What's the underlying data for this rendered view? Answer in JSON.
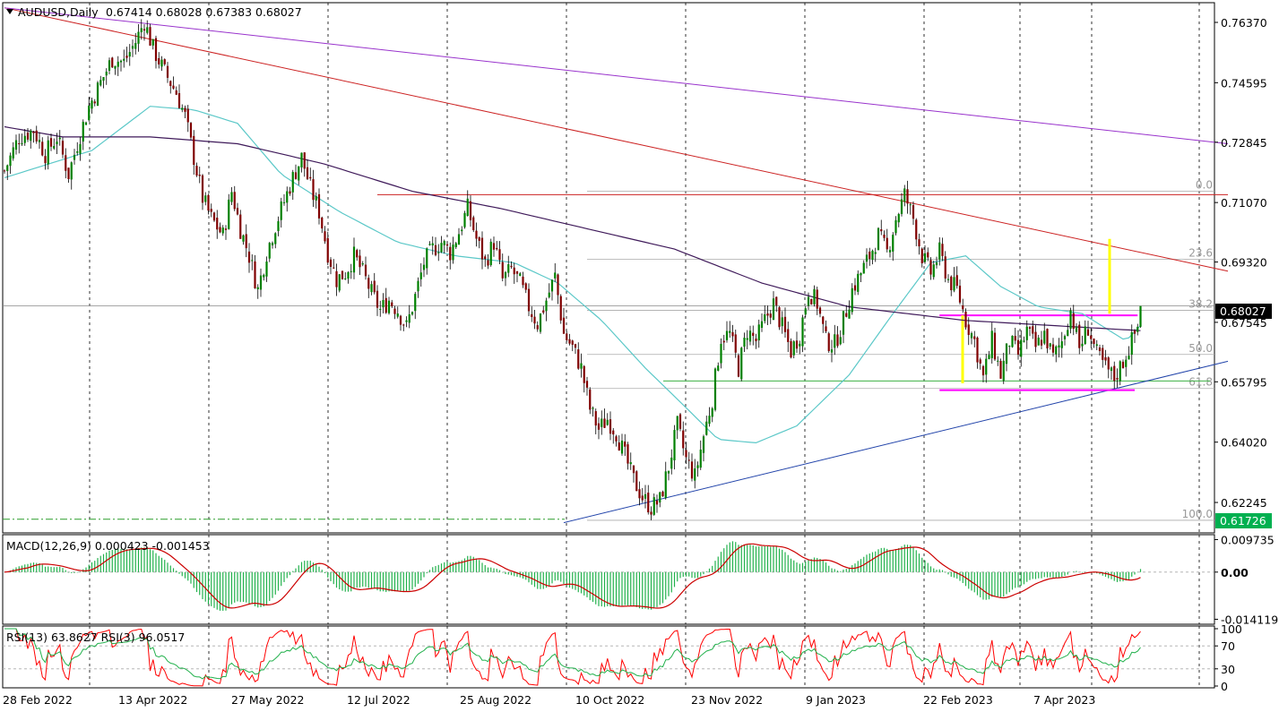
{
  "header": {
    "symbol": "AUDUSD,Daily",
    "ohlc": "0.67414 0.68028 0.67383 0.68027"
  },
  "price_scale": [
    "0.76370",
    "0.74595",
    "0.72845",
    "0.71070",
    "0.69320",
    "0.67545",
    "0.65795",
    "0.64020",
    "0.62245"
  ],
  "price_tags": {
    "current": "0.68027",
    "current_bg": "#000000",
    "low": "0.61726",
    "low_bg": "#00b050"
  },
  "fibonacci": [
    "0.0",
    "23.6",
    "38.2",
    "50.0",
    "61.8",
    "100.0"
  ],
  "macd": {
    "label": "MACD(12,26,9) 0.000423 -0.001453",
    "scale": [
      "0.009735",
      "0.00",
      "-0.014119"
    ],
    "histogram_color": "#22b14c",
    "signal_color": "#cc0000"
  },
  "rsi": {
    "label": "RSI(13) 63.8627  RSI(3) 96.0517",
    "scale": [
      "100",
      "70",
      "30",
      "0"
    ],
    "slow_color": "#22b14c",
    "fast_color": "#ff0000"
  },
  "date_axis": [
    "28 Feb 2022",
    "13 Apr 2022",
    "27 May 2022",
    "12 Jul 2022",
    "25 Aug 2022",
    "10 Oct 2022",
    "23 Nov 2022",
    "9 Jan 2023",
    "22 Feb 2023",
    "7 Apr 2023"
  ],
  "colors": {
    "bull_candle": "#008000",
    "bear_candle": "#800000",
    "ma_fast": "#5bc8c8",
    "ma_slow": "#3f1a5a",
    "trend_red": "#cc2222",
    "trend_purple": "#9933cc",
    "trend_blue": "#2244aa",
    "range_box": "#ff00ff",
    "measure": "#ffff00"
  },
  "chart_data": {
    "type": "candlestick",
    "symbol": "AUDUSD",
    "timeframe": "Daily",
    "last_ohlc": {
      "open": 0.67414,
      "high": 0.68028,
      "low": 0.67383,
      "close": 0.68027
    },
    "ylim": [
      0.6135,
      0.7695
    ],
    "x_tick_labels": [
      "28 Feb 2022",
      "13 Apr 2022",
      "27 May 2022",
      "12 Jul 2022",
      "25 Aug 2022",
      "10 Oct 2022",
      "23 Nov 2022",
      "9 Jan 2023",
      "22 Feb 2023",
      "7 Apr 2023"
    ],
    "close_path": [
      [
        0,
        0.72
      ],
      [
        5,
        0.73
      ],
      [
        10,
        0.732
      ],
      [
        14,
        0.725
      ],
      [
        18,
        0.73
      ],
      [
        22,
        0.719
      ],
      [
        25,
        0.728
      ],
      [
        29,
        0.739
      ],
      [
        33,
        0.746
      ],
      [
        37,
        0.753
      ],
      [
        41,
        0.752
      ],
      [
        45,
        0.758
      ],
      [
        48,
        0.764
      ],
      [
        51,
        0.756
      ],
      [
        55,
        0.749
      ],
      [
        59,
        0.743
      ],
      [
        62,
        0.736
      ],
      [
        65,
        0.724
      ],
      [
        68,
        0.712
      ],
      [
        71,
        0.706
      ],
      [
        75,
        0.701
      ],
      [
        78,
        0.714
      ],
      [
        81,
        0.703
      ],
      [
        84,
        0.695
      ],
      [
        87,
        0.685
      ],
      [
        90,
        0.696
      ],
      [
        93,
        0.704
      ],
      [
        96,
        0.711
      ],
      [
        99,
        0.718
      ],
      [
        102,
        0.724
      ],
      [
        105,
        0.715
      ],
      [
        108,
        0.708
      ],
      [
        111,
        0.696
      ],
      [
        114,
        0.688
      ],
      [
        117,
        0.69
      ],
      [
        120,
        0.695
      ],
      [
        123,
        0.69
      ],
      [
        126,
        0.684
      ],
      [
        129,
        0.679
      ],
      [
        132,
        0.682
      ],
      [
        135,
        0.679
      ],
      [
        138,
        0.674
      ],
      [
        141,
        0.683
      ],
      [
        144,
        0.693
      ],
      [
        147,
        0.697
      ],
      [
        150,
        0.699
      ],
      [
        153,
        0.696
      ],
      [
        156,
        0.702
      ],
      [
        159,
        0.709
      ],
      [
        162,
        0.7
      ],
      [
        165,
        0.693
      ],
      [
        168,
        0.699
      ],
      [
        171,
        0.688
      ],
      [
        174,
        0.691
      ],
      [
        177,
        0.687
      ],
      [
        180,
        0.68
      ],
      [
        183,
        0.675
      ],
      [
        186,
        0.682
      ],
      [
        189,
        0.689
      ],
      [
        192,
        0.672
      ],
      [
        195,
        0.668
      ],
      [
        198,
        0.662
      ],
      [
        201,
        0.65
      ],
      [
        204,
        0.644
      ],
      [
        207,
        0.647
      ],
      [
        210,
        0.643
      ],
      [
        213,
        0.636
      ],
      [
        216,
        0.629
      ],
      [
        219,
        0.624
      ],
      [
        222,
        0.621
      ],
      [
        225,
        0.623
      ],
      [
        228,
        0.633
      ],
      [
        231,
        0.645
      ],
      [
        234,
        0.635
      ],
      [
        237,
        0.63
      ],
      [
        240,
        0.642
      ],
      [
        243,
        0.653
      ],
      [
        246,
        0.671
      ],
      [
        249,
        0.672
      ],
      [
        252,
        0.662
      ],
      [
        255,
        0.673
      ],
      [
        258,
        0.67
      ],
      [
        261,
        0.676
      ],
      [
        264,
        0.681
      ],
      [
        267,
        0.674
      ],
      [
        270,
        0.667
      ],
      [
        273,
        0.672
      ],
      [
        276,
        0.685
      ],
      [
        279,
        0.681
      ],
      [
        282,
        0.67
      ],
      [
        285,
        0.669
      ],
      [
        288,
        0.676
      ],
      [
        291,
        0.685
      ],
      [
        294,
        0.69
      ],
      [
        297,
        0.695
      ],
      [
        300,
        0.701
      ],
      [
        303,
        0.696
      ],
      [
        306,
        0.706
      ],
      [
        309,
        0.713
      ],
      [
        312,
        0.706
      ],
      [
        315,
        0.695
      ],
      [
        318,
        0.69
      ],
      [
        321,
        0.696
      ],
      [
        324,
        0.688
      ],
      [
        327,
        0.685
      ],
      [
        330,
        0.676
      ],
      [
        333,
        0.67
      ],
      [
        336,
        0.659
      ],
      [
        339,
        0.67
      ],
      [
        342,
        0.66
      ],
      [
        345,
        0.67
      ],
      [
        348,
        0.666
      ],
      [
        351,
        0.673
      ],
      [
        354,
        0.668
      ],
      [
        357,
        0.672
      ],
      [
        360,
        0.665
      ],
      [
        363,
        0.67
      ],
      [
        366,
        0.679
      ],
      [
        369,
        0.668
      ],
      [
        372,
        0.674
      ],
      [
        375,
        0.666
      ],
      [
        378,
        0.662
      ],
      [
        381,
        0.659
      ],
      [
        384,
        0.664
      ],
      [
        387,
        0.67
      ],
      [
        389,
        0.6741
      ],
      [
        390,
        0.6803
      ]
    ],
    "moving_averages": [
      {
        "name": "fast MA",
        "points": [
          [
            0,
            0.718
          ],
          [
            30,
            0.726
          ],
          [
            50,
            0.739
          ],
          [
            65,
            0.738
          ],
          [
            80,
            0.734
          ],
          [
            95,
            0.719
          ],
          [
            115,
            0.708
          ],
          [
            135,
            0.699
          ],
          [
            155,
            0.695
          ],
          [
            175,
            0.693
          ],
          [
            190,
            0.687
          ],
          [
            205,
            0.676
          ],
          [
            220,
            0.662
          ],
          [
            232,
            0.652
          ],
          [
            245,
            0.641
          ],
          [
            258,
            0.64
          ],
          [
            272,
            0.645
          ],
          [
            290,
            0.66
          ],
          [
            305,
            0.678
          ],
          [
            318,
            0.693
          ],
          [
            330,
            0.695
          ],
          [
            342,
            0.686
          ],
          [
            355,
            0.68
          ],
          [
            370,
            0.678
          ],
          [
            385,
            0.67
          ],
          [
            390,
            0.6745
          ]
        ]
      },
      {
        "name": "slow MA",
        "points": [
          [
            0,
            0.733
          ],
          [
            20,
            0.73
          ],
          [
            50,
            0.73
          ],
          [
            80,
            0.728
          ],
          [
            110,
            0.722
          ],
          [
            140,
            0.714
          ],
          [
            170,
            0.709
          ],
          [
            200,
            0.703
          ],
          [
            230,
            0.697
          ],
          [
            260,
            0.687
          ],
          [
            290,
            0.68
          ],
          [
            310,
            0.678
          ],
          [
            330,
            0.676
          ],
          [
            350,
            0.675
          ],
          [
            370,
            0.674
          ],
          [
            390,
            0.673
          ]
        ]
      }
    ],
    "fibonacci_levels": [
      {
        "label": "0.0",
        "price": 0.714
      },
      {
        "label": "23.6",
        "price": 0.694
      },
      {
        "label": "38.2",
        "price": 0.679
      },
      {
        "label": "50.0",
        "price": 0.666
      },
      {
        "label": "61.8",
        "price": 0.656
      },
      {
        "label": "100.0",
        "price": 0.6172
      }
    ],
    "trendlines": [
      {
        "name": "red descending",
        "from": [
          0,
          0.768
        ],
        "to": [
          420,
          0.6905
        ]
      },
      {
        "name": "purple descending",
        "from": [
          0,
          0.768
        ],
        "to": [
          420,
          0.728
        ]
      },
      {
        "name": "blue ascending",
        "from": [
          192,
          0.6165
        ],
        "to": [
          420,
          0.664
        ]
      },
      {
        "name": "red horizontal",
        "from": [
          128,
          0.713
        ],
        "to": [
          420,
          0.713
        ]
      },
      {
        "name": "magenta range top",
        "from": [
          321,
          0.6775
        ],
        "to": [
          389,
          0.6775
        ]
      },
      {
        "name": "magenta range bottom",
        "from": [
          321,
          0.6555
        ],
        "to": [
          388,
          0.6555
        ]
      }
    ],
    "macd_range": [
      -0.0148,
      0.0104
    ],
    "rsi_range": [
      0,
      100
    ],
    "rsi_levels": [
      70,
      30
    ],
    "current_price": 0.68027,
    "marked_low": 0.61726
  }
}
